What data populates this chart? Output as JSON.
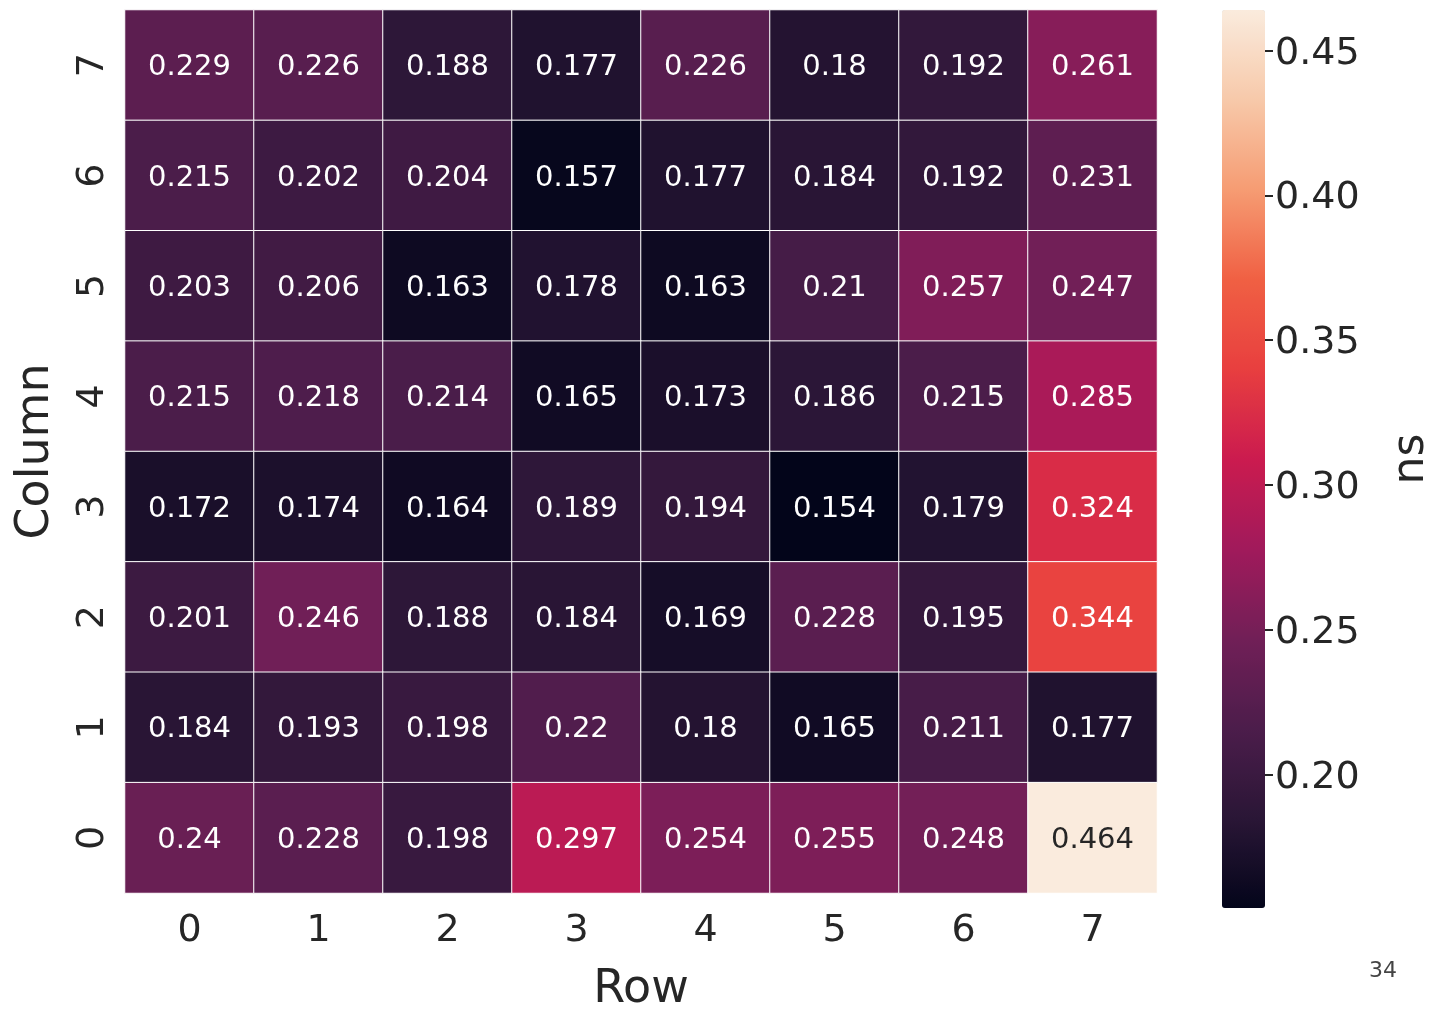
{
  "chart_data": {
    "type": "heatmap",
    "xlabel": "Row",
    "ylabel": "Column",
    "clabel": "ns",
    "categories": [
      "0",
      "1",
      "2",
      "3",
      "4",
      "5",
      "6",
      "7"
    ],
    "y_categories": [
      "7",
      "6",
      "5",
      "4",
      "3",
      "2",
      "1",
      "0"
    ],
    "cells": [
      [
        0.229,
        0.226,
        0.188,
        0.177,
        0.226,
        0.18,
        0.192,
        0.261
      ],
      [
        0.215,
        0.202,
        0.204,
        0.157,
        0.177,
        0.184,
        0.192,
        0.231
      ],
      [
        0.203,
        0.206,
        0.163,
        0.178,
        0.163,
        0.21,
        0.257,
        0.247
      ],
      [
        0.215,
        0.218,
        0.214,
        0.165,
        0.173,
        0.186,
        0.215,
        0.285
      ],
      [
        0.172,
        0.174,
        0.164,
        0.189,
        0.194,
        0.154,
        0.179,
        0.324
      ],
      [
        0.201,
        0.246,
        0.188,
        0.184,
        0.169,
        0.228,
        0.195,
        0.344
      ],
      [
        0.184,
        0.193,
        0.198,
        0.22,
        0.18,
        0.165,
        0.211,
        0.177
      ],
      [
        0.24,
        0.228,
        0.198,
        0.297,
        0.254,
        0.255,
        0.248,
        0.464
      ]
    ],
    "clim": [
      0.154,
      0.464
    ],
    "cticks": [
      {
        "value": 0.2,
        "label": "0.20"
      },
      {
        "value": 0.25,
        "label": "0.25"
      },
      {
        "value": 0.3,
        "label": "0.30"
      },
      {
        "value": 0.35,
        "label": "0.35"
      },
      {
        "value": 0.4,
        "label": "0.40"
      },
      {
        "value": 0.45,
        "label": "0.45"
      }
    ],
    "data_labels": true,
    "annotations": [
      "34"
    ]
  }
}
